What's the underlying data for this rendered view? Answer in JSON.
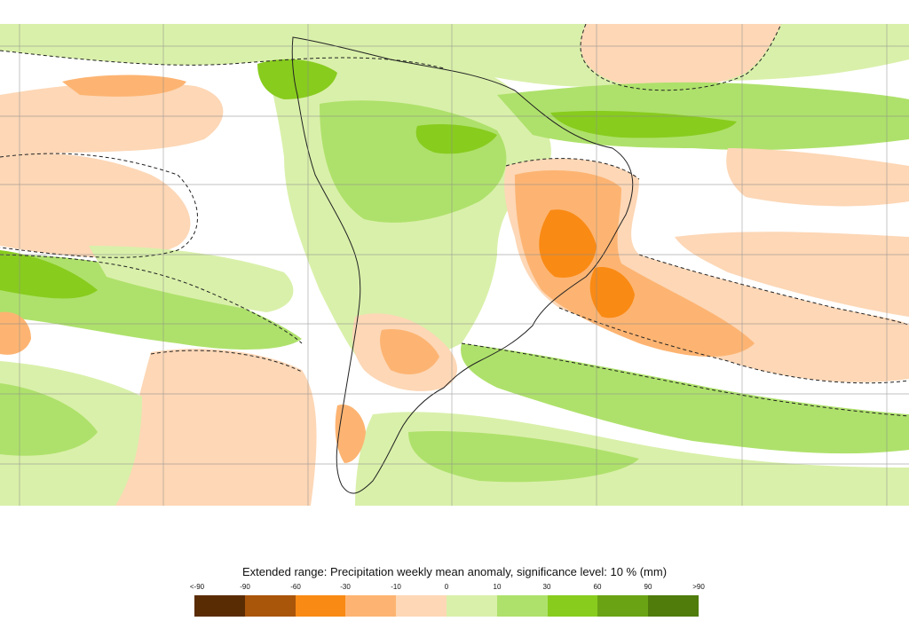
{
  "figure": {
    "title": "Extended range: Precipitation weekly mean anomaly, significance level: 10 % (mm)"
  },
  "legend": {
    "tick_labels": [
      "<-90",
      "-90",
      "-60",
      "-30",
      "-10",
      "0",
      "10",
      "30",
      "60",
      "90",
      ">90"
    ],
    "colors": [
      "#5a2c04",
      "#a9550a",
      "#f98a14",
      "#fdb472",
      "#fdd7b6",
      "#d9f0aa",
      "#aee16b",
      "#88cc1e",
      "#6aa314",
      "#4f7c0b"
    ]
  },
  "map": {
    "region": "South America and surrounding oceans",
    "background_no_signal": "#ffffff",
    "contour_style": "dashed significance contour"
  }
}
